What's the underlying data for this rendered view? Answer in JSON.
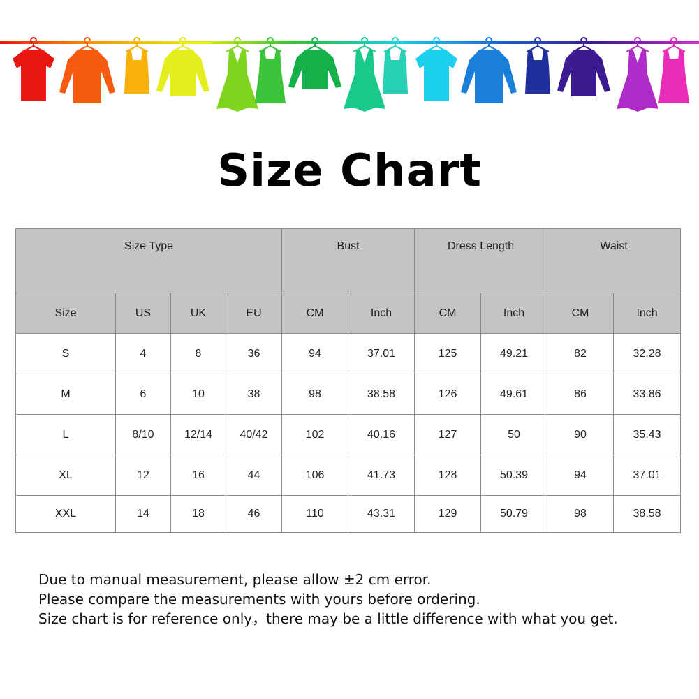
{
  "banner": {
    "rod_colors": [
      "#e8170f",
      "#f7a10a",
      "#e8ef1a",
      "#2fbf3a",
      "#1ed0ef",
      "#1a5fd0",
      "#3b1b8f",
      "#d02cc9"
    ],
    "garments": [
      {
        "type": "tshirt",
        "color": "#e8170f"
      },
      {
        "type": "shirt",
        "color": "#f55a10"
      },
      {
        "type": "tank",
        "color": "#f7b10a"
      },
      {
        "type": "cardigan",
        "color": "#e3ee1c"
      },
      {
        "type": "dress",
        "color": "#7fd51d"
      },
      {
        "type": "tankdress",
        "color": "#3ec43a"
      },
      {
        "type": "sweater",
        "color": "#16b04a"
      },
      {
        "type": "dress",
        "color": "#18c98a"
      },
      {
        "type": "tank",
        "color": "#25d0b5"
      },
      {
        "type": "tshirt",
        "color": "#1ed0ef"
      },
      {
        "type": "shirt",
        "color": "#1a7fd8"
      },
      {
        "type": "tank",
        "color": "#1f2f9e"
      },
      {
        "type": "cardigan",
        "color": "#3b1b8f"
      },
      {
        "type": "dress",
        "color": "#b02cc9"
      },
      {
        "type": "tankdress",
        "color": "#e92cb8"
      }
    ]
  },
  "title": "Size Chart",
  "table": {
    "group_headers": [
      "Size Type",
      "Bust",
      "Dress Length",
      "Waist"
    ],
    "sub_headers": [
      "Size",
      "US",
      "UK",
      "EU",
      "CM",
      "Inch",
      "CM",
      "Inch",
      "CM",
      "Inch"
    ],
    "rows": [
      [
        "S",
        "4",
        "8",
        "36",
        "94",
        "37.01",
        "125",
        "49.21",
        "82",
        "32.28"
      ],
      [
        "M",
        "6",
        "10",
        "38",
        "98",
        "38.58",
        "126",
        "49.61",
        "86",
        "33.86"
      ],
      [
        "L",
        "8/10",
        "12/14",
        "40/42",
        "102",
        "40.16",
        "127",
        "50",
        "90",
        "35.43"
      ],
      [
        "XL",
        "12",
        "16",
        "44",
        "106",
        "41.73",
        "128",
        "50.39",
        "94",
        "37.01"
      ],
      [
        "XXL",
        "14",
        "18",
        "46",
        "110",
        "43.31",
        "129",
        "50.79",
        "98",
        "38.58"
      ]
    ]
  },
  "notes": [
    "Due to manual measurement, please allow ±2 cm error.",
    "Please compare the measurements with yours before ordering.",
    "Size chart is for reference only，there may be a little difference with what you get."
  ]
}
